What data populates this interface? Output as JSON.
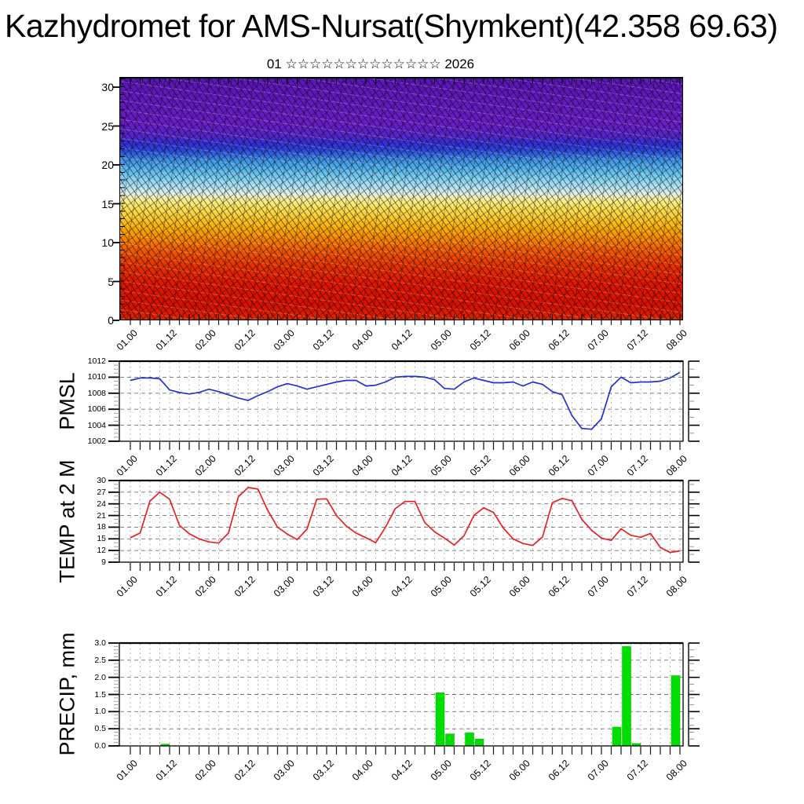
{
  "title": "Kazhydromet for AMS-Nursat(Shymkent)(42.358 69.63)",
  "subtitle": "01 ☆☆☆☆☆☆☆☆☆☆☆☆☆ 2026",
  "x_labels": [
    "01.00",
    "01.12",
    "02.00",
    "02.12",
    "03.00",
    "03.12",
    "04.00",
    "04.12",
    "05.00",
    "05.12",
    "06.00",
    "06.12",
    "07.00",
    "07.12",
    "08.00"
  ],
  "time_axis": {
    "start": "01.00",
    "end": "08.00",
    "step_hours": 3,
    "n_points": 57
  },
  "colors": {
    "pmsl_line": "#2233cc",
    "temp_line": "#ea2020",
    "precip_bar": "#00dd00",
    "grid_v": "#999999",
    "grid_h": "#707070",
    "frame": "#000000"
  },
  "chart_data": [
    {
      "id": "upper_air_section",
      "type": "heatmap",
      "ylim": [
        0,
        31
      ],
      "yticks": [
        0,
        5,
        10,
        15,
        20,
        25,
        30
      ],
      "x_start": "01.00",
      "x_end": "08.00",
      "x_step_hours": 3,
      "color_bands_bottom_to_top": [
        {
          "y": [
            0,
            6
          ],
          "color": "#d90f00"
        },
        {
          "y": [
            6,
            10
          ],
          "color": "#e63000"
        },
        {
          "y": [
            10,
            13
          ],
          "color": "#f26000"
        },
        {
          "y": [
            13,
            15
          ],
          "color": "#f5a300"
        },
        {
          "y": [
            15,
            16
          ],
          "color": "#f8e05a"
        },
        {
          "y": [
            16,
            17
          ],
          "color": "#f4efb0"
        },
        {
          "y": [
            17,
            18.5
          ],
          "color": "#cfe9f5"
        },
        {
          "y": [
            18.5,
            20
          ],
          "color": "#8fd4f0"
        },
        {
          "y": [
            20,
            21.5
          ],
          "color": "#49aee8"
        },
        {
          "y": [
            21.5,
            23
          ],
          "color": "#2436d6"
        },
        {
          "y": [
            23,
            31
          ],
          "color": "#6319c0"
        }
      ]
    },
    {
      "id": "pmsl",
      "type": "line",
      "label": "PMSL",
      "ylim": [
        1002,
        1012
      ],
      "yticks": [
        1002,
        1004,
        1006,
        1008,
        1010,
        1012
      ],
      "values": [
        1009.6,
        1009.9,
        1009.9,
        1009.8,
        1008.4,
        1008.1,
        1007.9,
        1008.1,
        1008.5,
        1008.2,
        1007.8,
        1007.4,
        1007.1,
        1007.7,
        1008.2,
        1008.8,
        1009.2,
        1008.9,
        1008.5,
        1008.8,
        1009.1,
        1009.4,
        1009.6,
        1009.6,
        1008.9,
        1009.0,
        1009.4,
        1010.0,
        1010.1,
        1010.1,
        1010.0,
        1009.7,
        1008.6,
        1008.5,
        1009.4,
        1009.9,
        1009.6,
        1009.3,
        1009.3,
        1009.4,
        1008.9,
        1009.4,
        1009.1,
        1008.2,
        1007.8,
        1005.2,
        1003.6,
        1003.5,
        1004.8,
        1008.8,
        1010.0,
        1009.3,
        1009.4,
        1009.4,
        1009.5,
        1009.9,
        1010.6
      ]
    },
    {
      "id": "temp_2m",
      "type": "line",
      "label": "TEMP at 2 M",
      "ylim": [
        9,
        30
      ],
      "yticks": [
        9,
        12,
        15,
        18,
        21,
        24,
        27,
        30
      ],
      "values": [
        15.3,
        16.5,
        24.7,
        27.0,
        25.2,
        18.5,
        16.3,
        15.0,
        14.2,
        13.9,
        16.5,
        25.8,
        28.2,
        27.8,
        22.3,
        18.0,
        16.2,
        14.8,
        17.5,
        25.2,
        25.3,
        21.0,
        18.3,
        16.5,
        15.3,
        14.0,
        18.0,
        22.8,
        24.6,
        24.6,
        19.2,
        16.8,
        15.2,
        13.4,
        15.8,
        21.0,
        23.0,
        21.8,
        17.8,
        15.0,
        13.8,
        13.3,
        15.5,
        24.3,
        25.4,
        24.8,
        20.0,
        17.2,
        15.2,
        14.6,
        17.6,
        15.9,
        15.4,
        16.4,
        12.8,
        11.5,
        11.9
      ]
    },
    {
      "id": "precip",
      "type": "bar",
      "label": "PRECIP, mm",
      "ylim": [
        0,
        3
      ],
      "yticks": [
        "0.0",
        "0.5",
        "1.0",
        "1.5",
        "2.0",
        "2.5",
        "3.0"
      ],
      "values": [
        0,
        0,
        0,
        0,
        0.05,
        0,
        0,
        0,
        0,
        0,
        0,
        0,
        0,
        0,
        0,
        0,
        0,
        0,
        0,
        0,
        0,
        0,
        0,
        0,
        0,
        0,
        0,
        0,
        0,
        0,
        0,
        0,
        1.55,
        0.35,
        0,
        0.38,
        0.2,
        0,
        0,
        0,
        0,
        0,
        0,
        0,
        0,
        0,
        0,
        0,
        0,
        0,
        0.55,
        2.9,
        0.07,
        0,
        0,
        0,
        2.05
      ]
    }
  ]
}
